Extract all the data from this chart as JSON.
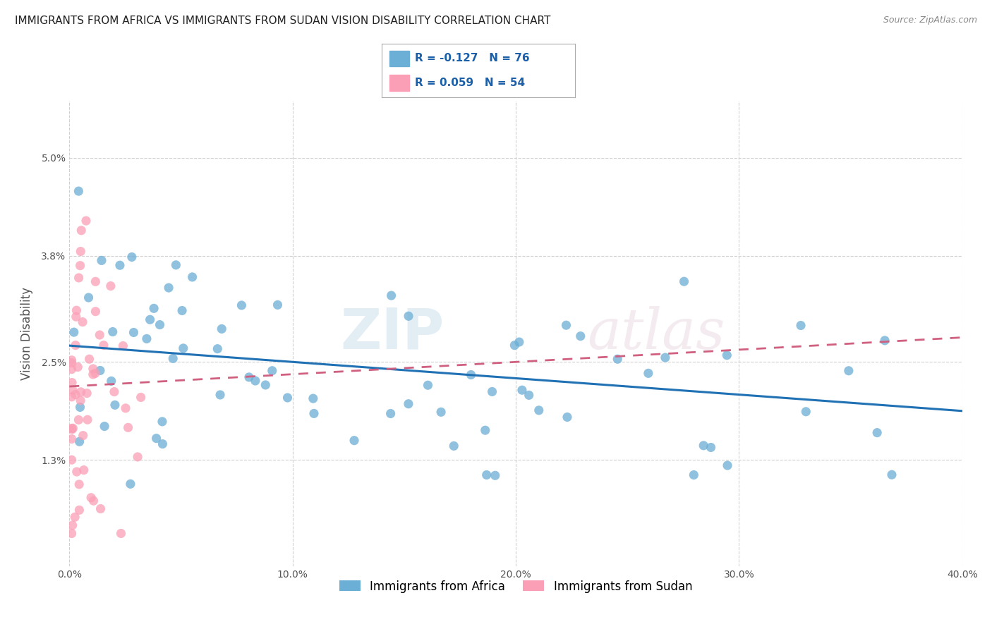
{
  "title": "IMMIGRANTS FROM AFRICA VS IMMIGRANTS FROM SUDAN VISION DISABILITY CORRELATION CHART",
  "source": "Source: ZipAtlas.com",
  "ylabel": "Vision Disability",
  "xlim": [
    0.0,
    0.4
  ],
  "ylim": [
    0.0,
    0.057
  ],
  "yticks": [
    0.013,
    0.025,
    0.038,
    0.05
  ],
  "ytick_labels": [
    "1.3%",
    "2.5%",
    "3.8%",
    "5.0%"
  ],
  "xticks": [
    0.0,
    0.1,
    0.2,
    0.3,
    0.4
  ],
  "xtick_labels": [
    "0.0%",
    "10.0%",
    "20.0%",
    "30.0%",
    "40.0%"
  ],
  "legend_africa": "R = -0.127   N = 76",
  "legend_sudan": "R = 0.059   N = 54",
  "color_africa": "#6baed6",
  "color_sudan": "#fa9fb5",
  "africa_R": -0.127,
  "sudan_R": 0.059,
  "watermark": "ZIPatlas",
  "africa_trend_x": [
    0.0,
    0.4
  ],
  "africa_trend_y": [
    0.027,
    0.019
  ],
  "sudan_trend_x": [
    0.0,
    0.4
  ],
  "sudan_trend_y": [
    0.022,
    0.028
  ]
}
